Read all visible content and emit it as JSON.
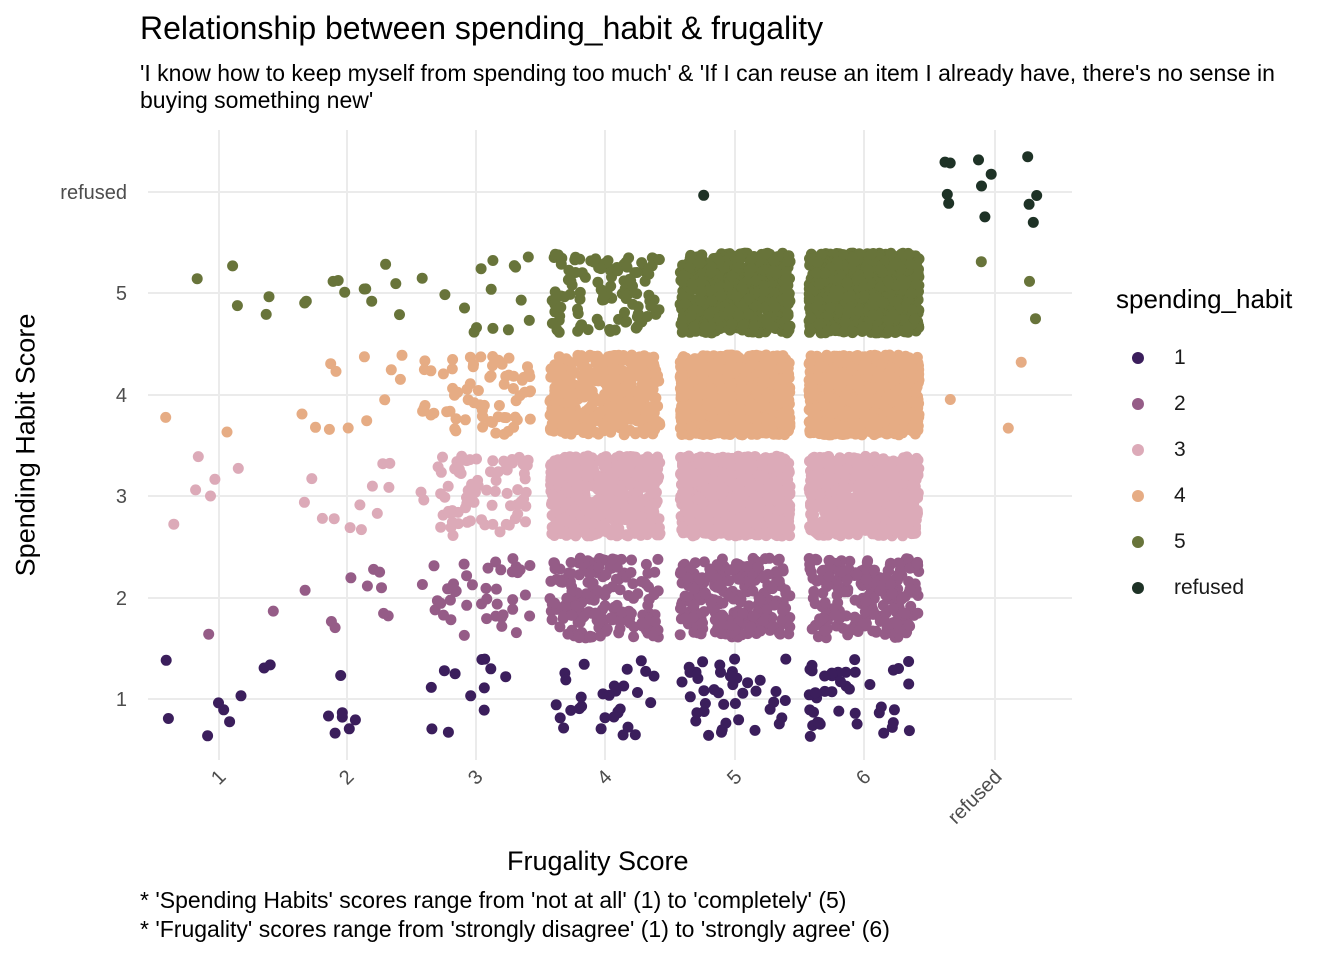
{
  "chart_data": {
    "type": "scatter",
    "title": "Relationship between spending_habit & frugality",
    "subtitle": "'I know how to keep myself from spending too much' & 'If I can reuse an item I already have, there's no sense in buying something new'",
    "xlabel": "Frugality Score",
    "ylabel": "Spending Habit Score",
    "x_categories": [
      "1",
      "2",
      "3",
      "4",
      "5",
      "6",
      "refused"
    ],
    "y_categories": [
      "1",
      "2",
      "3",
      "4",
      "5",
      "refused"
    ],
    "jitter": "points jittered within each category cell",
    "legend": {
      "title": "spending_habit",
      "placement": "right",
      "entries": [
        {
          "label": "1",
          "color": "#3b1e5c"
        },
        {
          "label": "2",
          "color": "#955c87"
        },
        {
          "label": "3",
          "color": "#dcaab8"
        },
        {
          "label": "4",
          "color": "#e6ac84"
        },
        {
          "label": "5",
          "color": "#68743a"
        },
        {
          "label": "refused",
          "color": "#1e3226"
        }
      ]
    },
    "counts": [
      {
        "x": "1",
        "y": "1",
        "n": 9
      },
      {
        "x": "1",
        "y": "2",
        "n": 2
      },
      {
        "x": "1",
        "y": "3",
        "n": 6
      },
      {
        "x": "1",
        "y": "4",
        "n": 2
      },
      {
        "x": "1",
        "y": "5",
        "n": 5
      },
      {
        "x": "2",
        "y": "1",
        "n": 7
      },
      {
        "x": "2",
        "y": "2",
        "n": 10
      },
      {
        "x": "2",
        "y": "3",
        "n": 12
      },
      {
        "x": "2",
        "y": "4",
        "n": 12
      },
      {
        "x": "2",
        "y": "5",
        "n": 11
      },
      {
        "x": "3",
        "y": "1",
        "n": 12
      },
      {
        "x": "3",
        "y": "2",
        "n": 42
      },
      {
        "x": "3",
        "y": "3",
        "n": 75
      },
      {
        "x": "3",
        "y": "4",
        "n": 70
      },
      {
        "x": "3",
        "y": "5",
        "n": 15
      },
      {
        "x": "4",
        "y": "1",
        "n": 30
      },
      {
        "x": "4",
        "y": "2",
        "n": 160
      },
      {
        "x": "4",
        "y": "3",
        "n": 600
      },
      {
        "x": "4",
        "y": "4",
        "n": 420
      },
      {
        "x": "4",
        "y": "5",
        "n": 110
      },
      {
        "x": "5",
        "y": "1",
        "n": 40
      },
      {
        "x": "5",
        "y": "2",
        "n": 230
      },
      {
        "x": "5",
        "y": "3",
        "n": 900
      },
      {
        "x": "5",
        "y": "4",
        "n": 1200
      },
      {
        "x": "5",
        "y": "5",
        "n": 600
      },
      {
        "x": "5",
        "y": "refused",
        "n": 1
      },
      {
        "x": "6",
        "y": "1",
        "n": 40
      },
      {
        "x": "6",
        "y": "2",
        "n": 220
      },
      {
        "x": "6",
        "y": "3",
        "n": 700
      },
      {
        "x": "6",
        "y": "4",
        "n": 1200
      },
      {
        "x": "6",
        "y": "5",
        "n": 1300
      },
      {
        "x": "refused",
        "y": "4",
        "n": 3
      },
      {
        "x": "refused",
        "y": "5",
        "n": 3
      },
      {
        "x": "refused",
        "y": "refused",
        "n": 12
      }
    ],
    "grid": true
  },
  "caption": [
    "* 'Spending Habits' scores range from 'not at all' (1) to 'completely' (5)",
    "* 'Frugality' scores range from 'strongly disagree' (1) to 'strongly agree' (6)"
  ]
}
